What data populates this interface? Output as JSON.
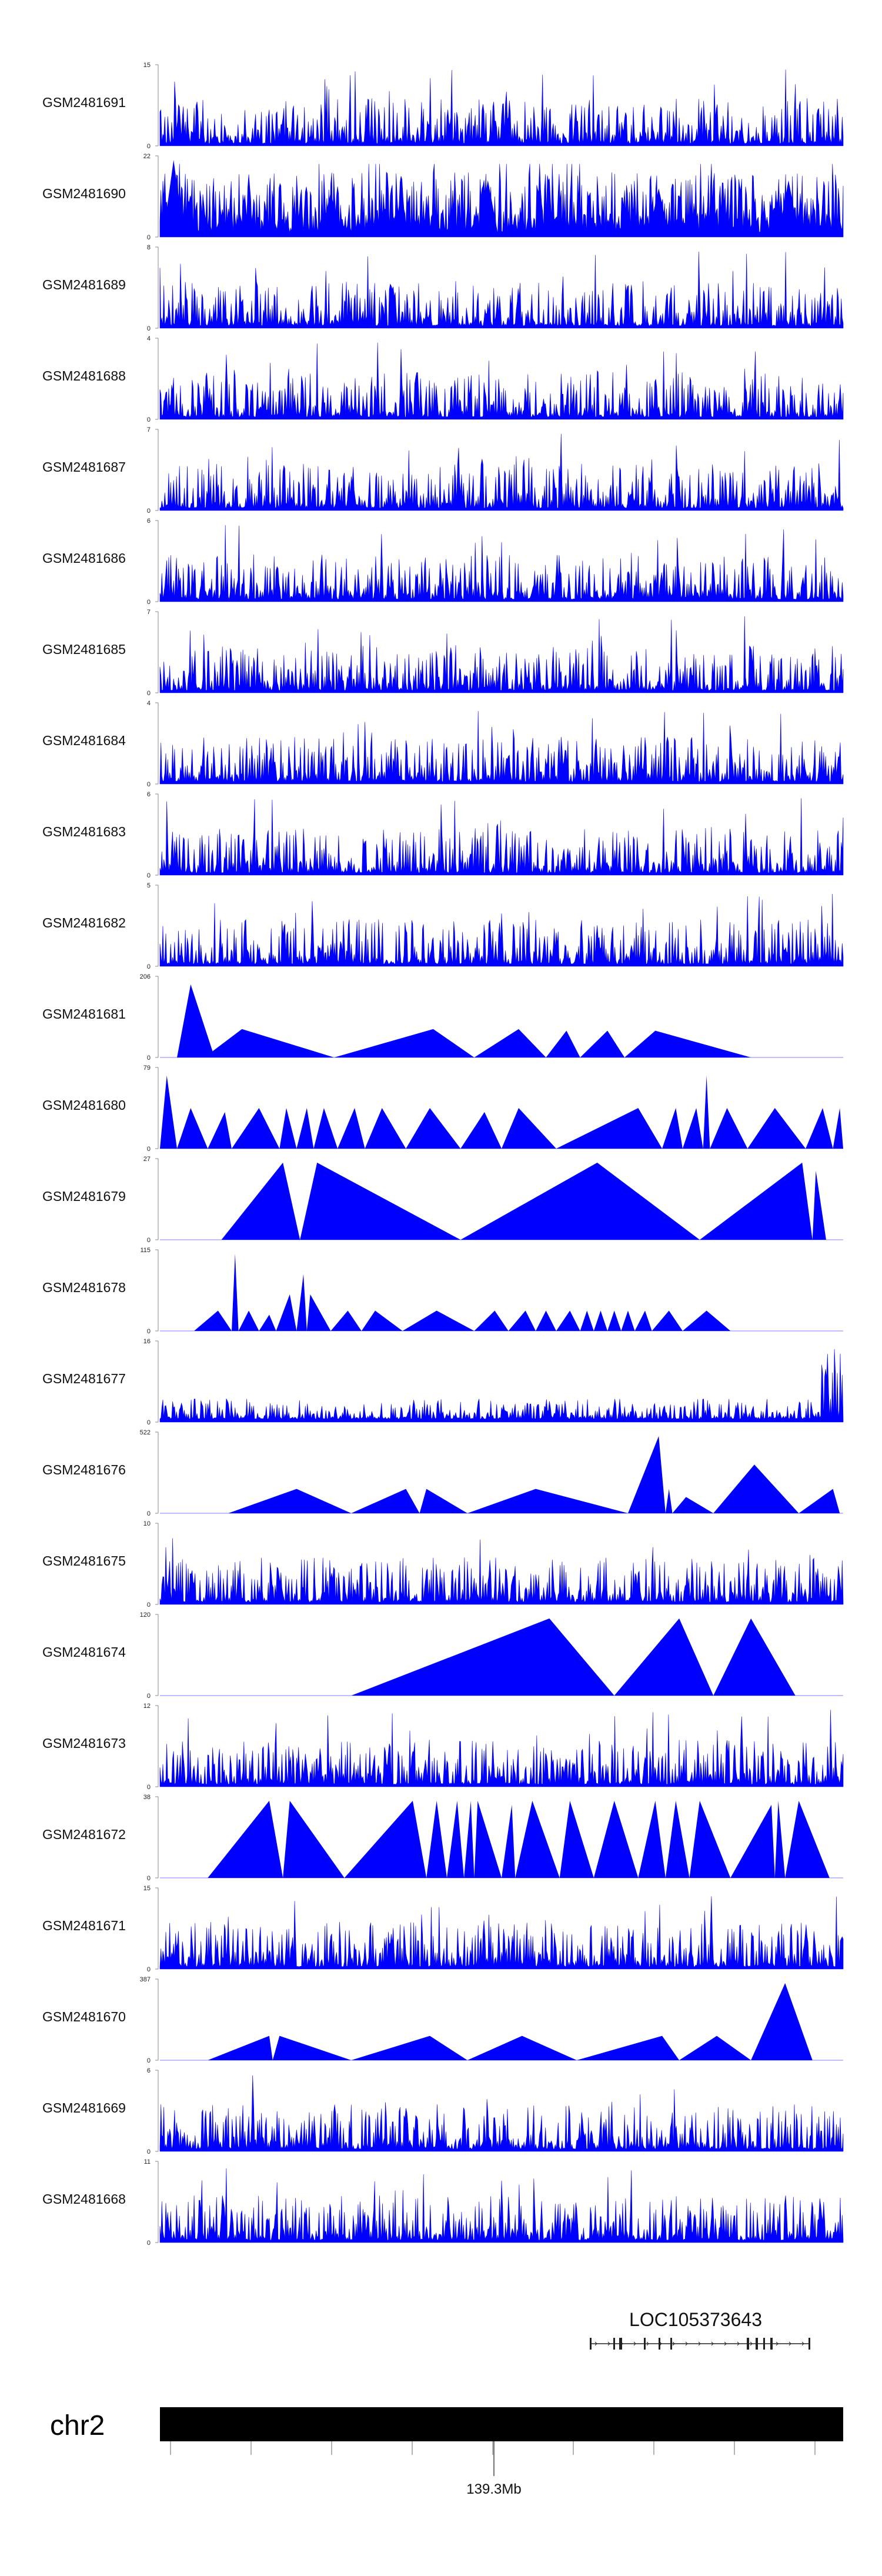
{
  "chart_data": {
    "type": "area",
    "title": "",
    "series_color": "#0000ff",
    "tracks": [
      {
        "name": "GSM2481691",
        "ymax": "15",
        "ymin": "0",
        "style": "dense",
        "seed": 11
      },
      {
        "name": "GSM2481690",
        "ymax": "22",
        "ymin": "0",
        "style": "triangles",
        "seed": 12,
        "peaks": [
          [
            0.02,
            0.95
          ],
          [
            0.25,
            0.55
          ],
          [
            0.48,
            0.7
          ],
          [
            0.73,
            0.6
          ],
          [
            0.92,
            0.7
          ]
        ]
      },
      {
        "name": "GSM2481689",
        "ymax": "8",
        "ymin": "0",
        "style": "dense",
        "seed": 13
      },
      {
        "name": "GSM2481688",
        "ymax": "4",
        "ymin": "0",
        "style": "dense",
        "seed": 14
      },
      {
        "name": "GSM2481687",
        "ymax": "7",
        "ymin": "0",
        "style": "dense",
        "seed": 15
      },
      {
        "name": "GSM2481686",
        "ymax": "6",
        "ymin": "0",
        "style": "dense",
        "seed": 16
      },
      {
        "name": "GSM2481685",
        "ymax": "7",
        "ymin": "0",
        "style": "dense",
        "seed": 17
      },
      {
        "name": "GSM2481684",
        "ymax": "4",
        "ymin": "0",
        "style": "dense",
        "seed": 18
      },
      {
        "name": "GSM2481683",
        "ymax": "6",
        "ymin": "0",
        "style": "dense",
        "seed": 19
      },
      {
        "name": "GSM2481682",
        "ymax": "5",
        "ymin": "0",
        "style": "dense",
        "seed": 20
      },
      {
        "name": "GSM2481681",
        "ymax": "206",
        "ymin": "0",
        "style": "sparse",
        "triangles": [
          [
            0.025,
            0.045,
            0.08,
            0.9
          ],
          [
            0.045,
            0.06,
            0.08,
            0.25
          ],
          [
            0.065,
            0.12,
            0.255,
            0.35
          ],
          [
            0.255,
            0.4,
            0.46,
            0.35
          ],
          [
            0.46,
            0.525,
            0.565,
            0.35
          ],
          [
            0.565,
            0.595,
            0.615,
            0.33
          ],
          [
            0.615,
            0.655,
            0.68,
            0.33
          ],
          [
            0.68,
            0.725,
            0.865,
            0.33
          ]
        ]
      },
      {
        "name": "GSM2481680",
        "ymax": "79",
        "ymin": "0",
        "style": "sparse",
        "triangles": [
          [
            0.0,
            0.01,
            0.025,
            0.9
          ],
          [
            0.025,
            0.045,
            0.07,
            0.5
          ],
          [
            0.07,
            0.095,
            0.105,
            0.45
          ],
          [
            0.105,
            0.145,
            0.175,
            0.5
          ],
          [
            0.175,
            0.185,
            0.2,
            0.5
          ],
          [
            0.2,
            0.215,
            0.225,
            0.5
          ],
          [
            0.225,
            0.24,
            0.26,
            0.5
          ],
          [
            0.26,
            0.285,
            0.3,
            0.5
          ],
          [
            0.3,
            0.325,
            0.36,
            0.5
          ],
          [
            0.36,
            0.395,
            0.44,
            0.5
          ],
          [
            0.44,
            0.475,
            0.5,
            0.45
          ],
          [
            0.5,
            0.525,
            0.58,
            0.5
          ],
          [
            0.58,
            0.7,
            0.735,
            0.5
          ],
          [
            0.735,
            0.755,
            0.765,
            0.5
          ],
          [
            0.765,
            0.785,
            0.795,
            0.5
          ],
          [
            0.795,
            0.8,
            0.805,
            0.9
          ],
          [
            0.805,
            0.83,
            0.86,
            0.5
          ],
          [
            0.86,
            0.9,
            0.945,
            0.5
          ],
          [
            0.945,
            0.97,
            0.985,
            0.5
          ],
          [
            0.985,
            0.995,
            1.0,
            0.5
          ]
        ]
      },
      {
        "name": "GSM2481679",
        "ymax": "27",
        "ymin": "0",
        "style": "sparse",
        "triangles": [
          [
            0.09,
            0.18,
            0.205,
            0.95
          ],
          [
            0.205,
            0.23,
            0.44,
            0.95
          ],
          [
            0.44,
            0.64,
            0.79,
            0.95
          ],
          [
            0.79,
            0.94,
            0.955,
            0.95
          ],
          [
            0.955,
            0.96,
            0.975,
            0.85
          ]
        ]
      },
      {
        "name": "GSM2481678",
        "ymax": "115",
        "ymin": "0",
        "style": "sparse",
        "triangles": [
          [
            0.05,
            0.085,
            0.105,
            0.25
          ],
          [
            0.105,
            0.11,
            0.115,
            0.95
          ],
          [
            0.115,
            0.13,
            0.145,
            0.25
          ],
          [
            0.145,
            0.16,
            0.17,
            0.2
          ],
          [
            0.17,
            0.19,
            0.2,
            0.45
          ],
          [
            0.2,
            0.21,
            0.215,
            0.7
          ],
          [
            0.215,
            0.22,
            0.25,
            0.45
          ],
          [
            0.25,
            0.275,
            0.295,
            0.25
          ],
          [
            0.295,
            0.315,
            0.355,
            0.25
          ],
          [
            0.355,
            0.405,
            0.46,
            0.25
          ],
          [
            0.46,
            0.49,
            0.51,
            0.25
          ],
          [
            0.51,
            0.535,
            0.55,
            0.25
          ],
          [
            0.55,
            0.565,
            0.58,
            0.25
          ],
          [
            0.58,
            0.6,
            0.615,
            0.25
          ],
          [
            0.615,
            0.625,
            0.635,
            0.25
          ],
          [
            0.635,
            0.645,
            0.655,
            0.25
          ],
          [
            0.655,
            0.665,
            0.675,
            0.25
          ],
          [
            0.675,
            0.685,
            0.695,
            0.25
          ],
          [
            0.695,
            0.71,
            0.72,
            0.25
          ],
          [
            0.72,
            0.745,
            0.765,
            0.25
          ],
          [
            0.765,
            0.8,
            0.835,
            0.25
          ]
        ]
      },
      {
        "name": "GSM2481677",
        "ymax": "16",
        "ymin": "0",
        "style": "lowdense",
        "seed": 21
      },
      {
        "name": "GSM2481676",
        "ymax": "522",
        "ymin": "0",
        "style": "sparse",
        "triangles": [
          [
            0.1,
            0.2,
            0.28,
            0.3
          ],
          [
            0.28,
            0.36,
            0.38,
            0.3
          ],
          [
            0.38,
            0.39,
            0.45,
            0.3
          ],
          [
            0.45,
            0.55,
            0.685,
            0.3
          ],
          [
            0.685,
            0.73,
            0.74,
            0.95
          ],
          [
            0.74,
            0.745,
            0.75,
            0.3
          ],
          [
            0.75,
            0.77,
            0.81,
            0.2
          ],
          [
            0.81,
            0.87,
            0.935,
            0.6
          ],
          [
            0.935,
            0.985,
            0.995,
            0.3
          ]
        ]
      },
      {
        "name": "GSM2481675",
        "ymax": "10",
        "ymin": "0",
        "style": "dense",
        "seed": 22
      },
      {
        "name": "GSM2481674",
        "ymax": "120",
        "ymin": "0",
        "style": "sparse",
        "triangles": [
          [
            0.28,
            0.57,
            0.665,
            0.95
          ],
          [
            0.665,
            0.76,
            0.81,
            0.95
          ],
          [
            0.81,
            0.865,
            0.93,
            0.95
          ]
        ]
      },
      {
        "name": "GSM2481673",
        "ymax": "12",
        "ymin": "0",
        "style": "dense",
        "seed": 23
      },
      {
        "name": "GSM2481672",
        "ymax": "38",
        "ymin": "0",
        "style": "sparse",
        "triangles": [
          [
            0.07,
            0.16,
            0.18,
            0.95
          ],
          [
            0.18,
            0.19,
            0.27,
            0.95
          ],
          [
            0.27,
            0.37,
            0.39,
            0.95
          ],
          [
            0.39,
            0.405,
            0.42,
            0.95
          ],
          [
            0.42,
            0.435,
            0.445,
            0.95
          ],
          [
            0.445,
            0.455,
            0.46,
            0.95
          ],
          [
            0.46,
            0.465,
            0.5,
            0.95
          ],
          [
            0.5,
            0.515,
            0.52,
            0.9
          ],
          [
            0.52,
            0.545,
            0.585,
            0.95
          ],
          [
            0.585,
            0.6,
            0.635,
            0.95
          ],
          [
            0.635,
            0.665,
            0.7,
            0.95
          ],
          [
            0.7,
            0.725,
            0.74,
            0.95
          ],
          [
            0.74,
            0.755,
            0.775,
            0.95
          ],
          [
            0.775,
            0.79,
            0.835,
            0.95
          ],
          [
            0.835,
            0.895,
            0.9,
            0.9
          ],
          [
            0.9,
            0.905,
            0.915,
            0.95
          ],
          [
            0.915,
            0.935,
            0.98,
            0.95
          ]
        ]
      },
      {
        "name": "GSM2481671",
        "ymax": "15",
        "ymin": "0",
        "style": "dense",
        "seed": 24
      },
      {
        "name": "GSM2481670",
        "ymax": "387",
        "ymin": "0",
        "style": "sparse",
        "triangles": [
          [
            0.07,
            0.16,
            0.165,
            0.3
          ],
          [
            0.165,
            0.175,
            0.28,
            0.3
          ],
          [
            0.28,
            0.395,
            0.45,
            0.3
          ],
          [
            0.45,
            0.53,
            0.61,
            0.3
          ],
          [
            0.61,
            0.735,
            0.76,
            0.3
          ],
          [
            0.76,
            0.815,
            0.865,
            0.3
          ],
          [
            0.865,
            0.915,
            0.955,
            0.95
          ]
        ]
      },
      {
        "name": "GSM2481669",
        "ymax": "6",
        "ymin": "0",
        "style": "dense",
        "seed": 25
      },
      {
        "name": "GSM2481668",
        "ymax": "11",
        "ymin": "0",
        "style": "dense",
        "seed": 26
      }
    ],
    "gene": {
      "name": "LOC105373643"
    },
    "chromosome": {
      "name": "chr2",
      "position_label": "139.3Mb"
    }
  }
}
